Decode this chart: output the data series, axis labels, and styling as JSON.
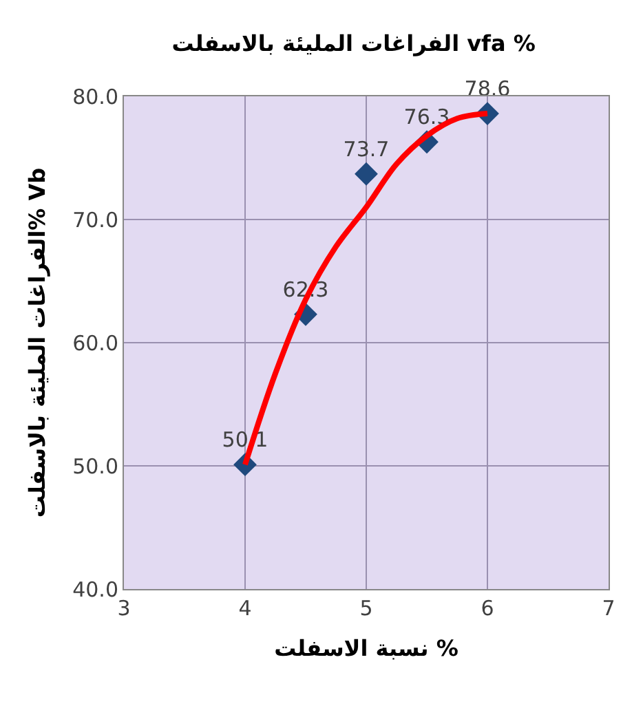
{
  "chart_data": {
    "type": "scatter",
    "title": "الفراغات المليئة بالاسفلت vfa %",
    "xlabel": "نسبة الاسفلت %",
    "ylabel": "الفراغات المليئة بالاسفلت% Vb",
    "xlim": [
      3,
      7
    ],
    "xticks": [
      3,
      4,
      5,
      6,
      7
    ],
    "ylim": [
      40,
      80
    ],
    "yticks": [
      {
        "value": 40,
        "label": "40.0"
      },
      {
        "value": 50,
        "label": "50.0"
      },
      {
        "value": 60,
        "label": "60.0"
      },
      {
        "value": 70,
        "label": "70.0"
      },
      {
        "value": 80,
        "label": "80.0"
      }
    ],
    "grid": true,
    "series": [
      {
        "marker": "diamond",
        "color": "#1f497d",
        "x": [
          4,
          4.5,
          5,
          5.5,
          6
        ],
        "values": [
          50.1,
          62.3,
          73.7,
          76.3,
          78.6
        ],
        "value_labels": [
          "50.1",
          "62.3",
          "73.7",
          "76.3",
          "78.6"
        ]
      },
      {
        "type": "line",
        "marker": "none",
        "color": "#ff0000",
        "x": [
          4,
          4.25,
          4.5,
          4.75,
          5,
          5.25,
          5.5,
          5.75,
          6
        ],
        "values": [
          50.1,
          57.5,
          63.5,
          67.8,
          71,
          74.5,
          76.8,
          78.2,
          78.6
        ]
      }
    ]
  }
}
